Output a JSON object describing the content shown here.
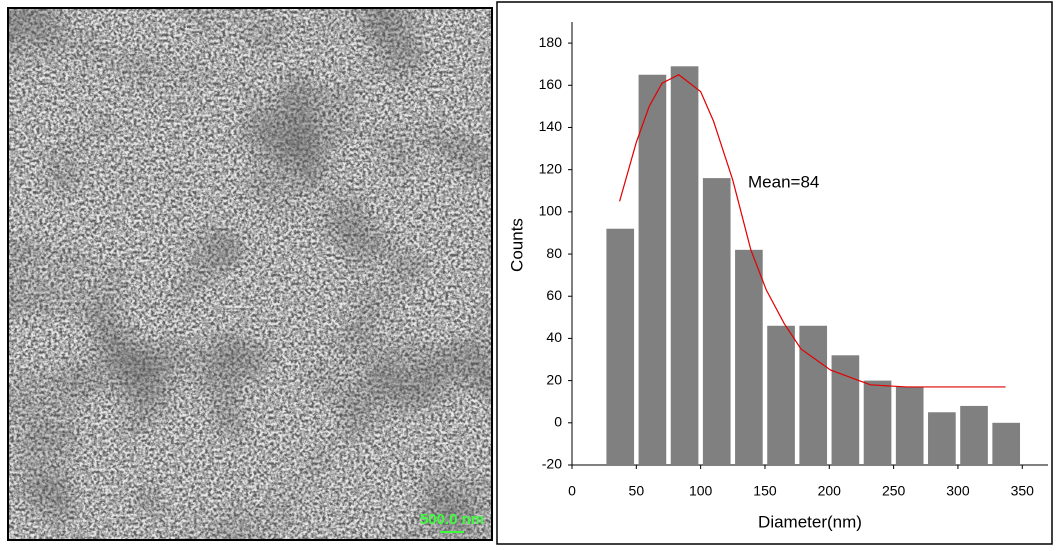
{
  "image": {
    "scale_label": "500.0 nm"
  },
  "chart_data": {
    "type": "histogram",
    "xlabel": "Diameter(nm)",
    "ylabel": "Counts",
    "annotation": "Mean=84",
    "bins": [
      25,
      50,
      75,
      100,
      125,
      150,
      175,
      200,
      225,
      250,
      275,
      300,
      325,
      350
    ],
    "values": [
      92,
      165,
      169,
      116,
      82,
      46,
      46,
      32,
      20,
      17,
      5,
      8,
      0
    ],
    "color": "#808080",
    "fit": {
      "color": "#e00000",
      "x": [
        37,
        50,
        60,
        70,
        83,
        100,
        110,
        125,
        139,
        151,
        165,
        178,
        201,
        232,
        260,
        300,
        337
      ],
      "y": [
        105,
        133,
        150,
        161,
        165,
        157,
        143,
        115,
        82,
        63,
        47,
        35,
        25,
        18,
        17,
        17,
        17
      ]
    },
    "xlim": [
      0,
      370
    ],
    "xticks": [
      0,
      50,
      100,
      150,
      200,
      250,
      300,
      350
    ],
    "ylim": [
      -20,
      190
    ],
    "yticks": [
      -20,
      0,
      20,
      40,
      60,
      80,
      100,
      120,
      140,
      160,
      180
    ]
  }
}
